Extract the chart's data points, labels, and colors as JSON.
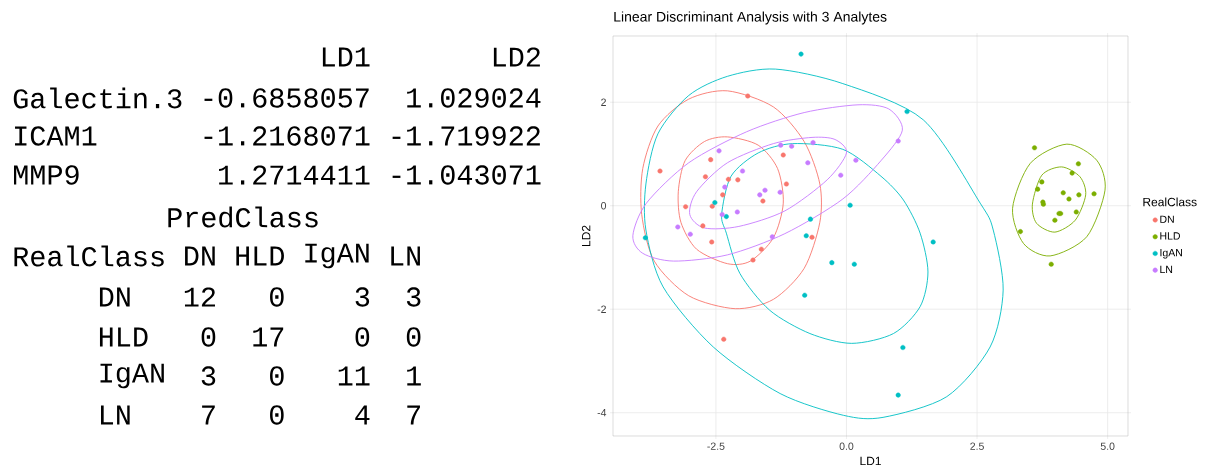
{
  "chart_data": [
    {
      "type": "other",
      "annotations": [
        "LD1",
        "LD2",
        "Galectin.3",
        "-0.6858057",
        "1.029024",
        "ICAM1",
        "-1.2168071",
        "-1.719922",
        "MMP9",
        "1.2714411",
        "-1.043071",
        "PredClass",
        "RealClass",
        "DN",
        "HLD",
        "IgAN",
        "LN",
        "DN",
        "12",
        "0",
        "3",
        "3",
        "HLD",
        "0",
        "17",
        "0",
        "0",
        "IgAN",
        "3",
        "0",
        "11",
        "1",
        "LN",
        "7",
        "0",
        "4",
        "7"
      ]
    },
    {
      "type": "scatter",
      "title": "Linear Discriminant Analysis with 3 Analytes",
      "xlabel": "LD1",
      "ylabel": "LD2",
      "legend_title": "RealClass",
      "legend": "right",
      "grid": true,
      "marker": "circle",
      "xlim": [
        -4.47,
        5.39
      ],
      "ylim": [
        -4.45,
        3.28
      ],
      "xticks": [
        {
          "value": -2.5,
          "label": "-2.5"
        },
        {
          "value": 0,
          "label": "0.0"
        },
        {
          "value": 2.5,
          "label": "2.5"
        },
        {
          "value": 5,
          "label": "5.0"
        }
      ],
      "yticks": [
        -4,
        -2,
        0,
        2
      ],
      "series": [
        {
          "name": "DN",
          "color": "#f8766d",
          "x": [
            -1.89,
            -3.57,
            -2.6,
            -2.7,
            -2.26,
            -2.08,
            -2.37,
            -1.21,
            -1.15,
            -1.6,
            -3.08,
            -2.57,
            -2.75,
            -2.58,
            -1.63,
            -1.79,
            -0.66,
            -2.35
          ],
          "values": [
            2.12,
            0.67,
            0.89,
            0.56,
            0.51,
            0.5,
            0.21,
            0.98,
            0.42,
            0.09,
            -0.02,
            -0.01,
            -0.39,
            -0.7,
            -0.84,
            -1.05,
            -0.61,
            -2.58
          ]
        },
        {
          "name": "HLD",
          "color": "#7cae00",
          "x": [
            3.6,
            4.44,
            4.32,
            3.74,
            3.66,
            4.15,
            4.45,
            4.74,
            4.26,
            3.76,
            3.77,
            4.4,
            4.1,
            4.07,
            3.99,
            3.33,
            3.92
          ],
          "values": [
            1.12,
            0.81,
            0.63,
            0.46,
            0.32,
            0.25,
            0.21,
            0.23,
            0.13,
            0.07,
            0.03,
            -0.12,
            -0.15,
            -0.15,
            -0.28,
            -0.5,
            -1.13
          ]
        },
        {
          "name": "IgAN",
          "color": "#00bfc4",
          "x": [
            -0.87,
            -2.52,
            -2.3,
            -0.69,
            0.07,
            -0.77,
            -0.28,
            0.15,
            -0.8,
            -3.85,
            1.16,
            1.66,
            1.08,
            0.99
          ],
          "values": [
            2.93,
            0.06,
            -0.21,
            -0.26,
            0.01,
            -0.58,
            -1.1,
            -1.13,
            -1.73,
            -0.62,
            1.82,
            -0.7,
            -2.74,
            -3.66
          ]
        },
        {
          "name": "LN",
          "color": "#c77cff",
          "x": [
            -2.44,
            -1.99,
            -2.33,
            -1.26,
            -1.05,
            -0.64,
            -0.74,
            0.18,
            -0.11,
            -1.56,
            -1.66,
            -1.27,
            -2.09,
            -2.38,
            -3.23,
            -2.99,
            -1.42,
            0.99
          ],
          "values": [
            1.06,
            0.67,
            0.36,
            1.17,
            1.15,
            1.22,
            0.83,
            0.88,
            0.59,
            0.3,
            0.21,
            0.26,
            -0.12,
            -0.17,
            -0.41,
            -0.55,
            -0.6,
            1.25
          ]
        }
      ]
    }
  ]
}
